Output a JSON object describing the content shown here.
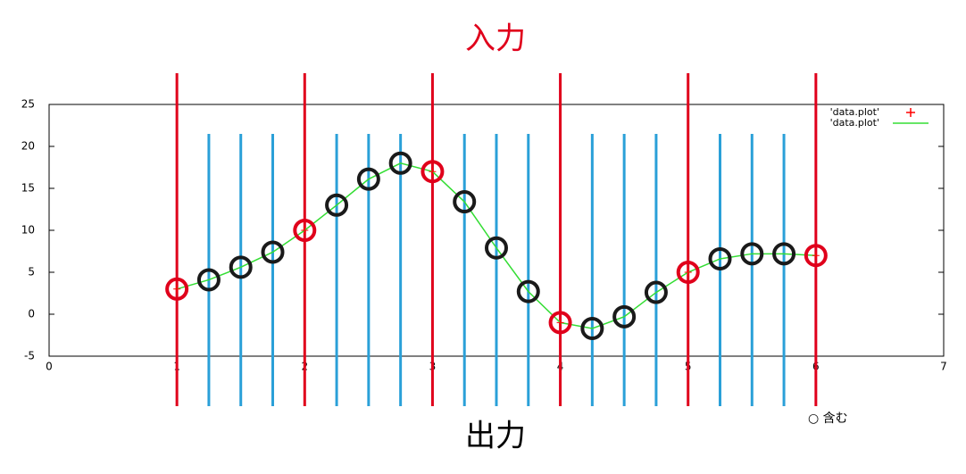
{
  "chart_data": {
    "type": "line",
    "top_label": "入力",
    "bottom_label": "出力",
    "note": "○ 含む",
    "xlim": [
      0,
      7
    ],
    "xticks": [
      0,
      1,
      2,
      3,
      4,
      5,
      6,
      7
    ],
    "ylim": [
      -5,
      25
    ],
    "yticks": [
      -5,
      0,
      5,
      10,
      15,
      20,
      25
    ],
    "series": [
      {
        "name": "'data.plot'",
        "color": "#ff0000",
        "marker": "+",
        "highlight_color": "#e0001b",
        "x": [
          1,
          2,
          3,
          4,
          5,
          6
        ],
        "values": [
          3,
          10,
          17,
          -1,
          5,
          7
        ]
      },
      {
        "name": "'data.plot'",
        "color": "#33dd33",
        "marker": "line",
        "x": [
          1,
          1.25,
          1.5,
          1.75,
          2,
          2.25,
          2.5,
          2.75,
          3,
          3.25,
          3.5,
          3.75,
          4,
          4.25,
          4.5,
          4.75,
          5,
          5.25,
          5.5,
          5.75,
          6
        ],
        "values": [
          3,
          4.1,
          5.6,
          7.4,
          10,
          13,
          16.1,
          18,
          17,
          13.4,
          7.9,
          2.7,
          -1,
          -1.7,
          -0.3,
          2.6,
          5,
          6.6,
          7.2,
          7.2,
          7
        ]
      }
    ],
    "output": {
      "x": [
        1.25,
        1.5,
        1.75,
        2.25,
        2.5,
        2.75,
        3.25,
        3.5,
        3.75,
        4.25,
        4.5,
        4.75,
        5.25,
        5.5,
        5.75
      ],
      "values": [
        4.1,
        5.6,
        7.4,
        13,
        16.1,
        18,
        13.4,
        7.9,
        2.7,
        -1.7,
        -0.3,
        2.6,
        6.6,
        7.2,
        7.2
      ],
      "color": "#1a1a1a",
      "line_color": "#2aa0d8"
    }
  }
}
